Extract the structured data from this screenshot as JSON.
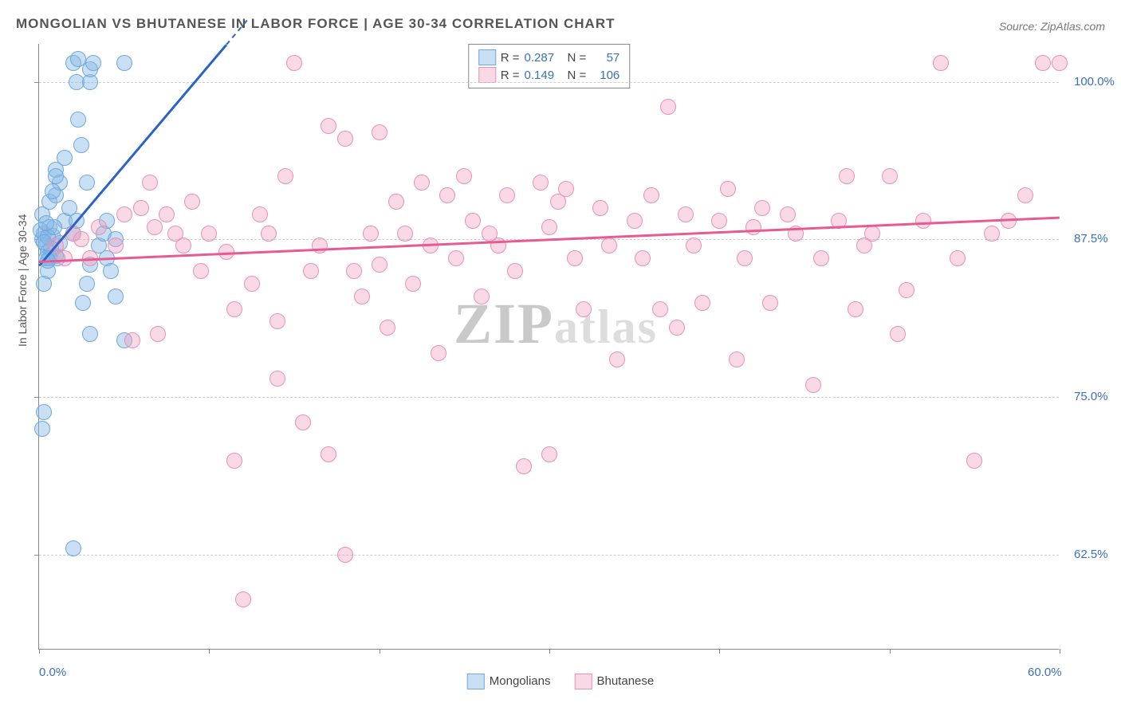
{
  "title": "MONGOLIAN VS BHUTANESE IN LABOR FORCE | AGE 30-34 CORRELATION CHART",
  "source": "Source: ZipAtlas.com",
  "y_axis_label": "In Labor Force | Age 30-34",
  "watermark_1": "ZIP",
  "watermark_2": "atlas",
  "chart": {
    "type": "scatter",
    "xlim": [
      0,
      60
    ],
    "ylim": [
      55,
      103
    ],
    "x_ticks": [
      0,
      10,
      20,
      30,
      40,
      50,
      60
    ],
    "x_tick_labels": {
      "0": "0.0%",
      "60": "60.0%"
    },
    "y_ticks": [
      62.5,
      75.0,
      87.5,
      100.0
    ],
    "y_tick_labels": [
      "62.5%",
      "75.0%",
      "87.5%",
      "100.0%"
    ],
    "grid_color": "#cccccc",
    "axis_color": "#888888",
    "background_color": "#ffffff",
    "marker_radius": 10,
    "marker_stroke_width": 1.5,
    "series": [
      {
        "name": "Mongolians",
        "fill_color": "rgba(135,183,231,0.45)",
        "stroke_color": "#6fa9db",
        "r_value": "0.287",
        "n_value": "57",
        "trend": {
          "x1": 0,
          "y1": 85.5,
          "x2": 11,
          "y2": 103,
          "color": "#2a62c9",
          "dash_tail": true
        },
        "points": [
          [
            0.2,
            87.5
          ],
          [
            0.3,
            88.0
          ],
          [
            0.4,
            87.0
          ],
          [
            0.5,
            86.5
          ],
          [
            0.6,
            88.5
          ],
          [
            0.8,
            87.8
          ],
          [
            1.0,
            86.2
          ],
          [
            0.5,
            85.0
          ],
          [
            0.3,
            84.0
          ],
          [
            1.2,
            87.2
          ],
          [
            0.1,
            88.2
          ],
          [
            0.2,
            89.5
          ],
          [
            0.2,
            72.5
          ],
          [
            0.3,
            73.8
          ],
          [
            1.0,
            93.0
          ],
          [
            1.5,
            89.0
          ],
          [
            2.0,
            88.0
          ],
          [
            2.0,
            101.5
          ],
          [
            2.2,
            100.0
          ],
          [
            2.3,
            101.8
          ],
          [
            3.0,
            100.0
          ],
          [
            2.3,
            97.0
          ],
          [
            2.5,
            95.0
          ],
          [
            2.8,
            92.0
          ],
          [
            3.0,
            101.0
          ],
          [
            3.2,
            101.5
          ],
          [
            5.0,
            101.5
          ],
          [
            2.6,
            82.5
          ],
          [
            2.8,
            84.0
          ],
          [
            3.0,
            85.5
          ],
          [
            3.0,
            80.0
          ],
          [
            3.5,
            87.0
          ],
          [
            3.8,
            88.0
          ],
          [
            4.0,
            89.0
          ],
          [
            4.0,
            86.0
          ],
          [
            4.5,
            87.5
          ],
          [
            4.2,
            85.0
          ],
          [
            4.5,
            83.0
          ],
          [
            5.0,
            79.5
          ],
          [
            2.0,
            63.0
          ],
          [
            0.6,
            90.5
          ],
          [
            1.0,
            91.0
          ],
          [
            1.2,
            92.0
          ],
          [
            1.5,
            94.0
          ],
          [
            1.0,
            92.5
          ],
          [
            0.8,
            91.3
          ],
          [
            0.5,
            87.7
          ],
          [
            0.7,
            86.8
          ],
          [
            0.9,
            88.5
          ],
          [
            1.8,
            90.0
          ],
          [
            2.2,
            89.0
          ],
          [
            0.4,
            86.0
          ],
          [
            0.6,
            86.0
          ],
          [
            1.1,
            86.0
          ],
          [
            0.3,
            87.3
          ],
          [
            0.4,
            88.8
          ],
          [
            0.5,
            85.8
          ]
        ]
      },
      {
        "name": "Bhutanese",
        "fill_color": "rgba(240,160,190,0.40)",
        "stroke_color": "#e890b5",
        "r_value": "0.149",
        "n_value": "106",
        "trend": {
          "x1": 0,
          "y1": 85.8,
          "x2": 60,
          "y2": 89.3,
          "color": "#e75a92",
          "dash_tail": false
        },
        "points": [
          [
            1.0,
            87.0
          ],
          [
            1.5,
            86.0
          ],
          [
            2.0,
            88.0
          ],
          [
            2.5,
            87.5
          ],
          [
            3.0,
            86.0
          ],
          [
            3.5,
            88.5
          ],
          [
            4.5,
            87.0
          ],
          [
            5.0,
            89.5
          ],
          [
            5.5,
            79.5
          ],
          [
            6.0,
            90.0
          ],
          [
            6.5,
            92.0
          ],
          [
            6.8,
            88.5
          ],
          [
            7.0,
            80.0
          ],
          [
            7.5,
            89.5
          ],
          [
            8.0,
            88.0
          ],
          [
            8.5,
            87.0
          ],
          [
            9.0,
            90.5
          ],
          [
            9.5,
            85.0
          ],
          [
            10.0,
            88.0
          ],
          [
            11.0,
            86.5
          ],
          [
            11.5,
            70.0
          ],
          [
            12.0,
            59.0
          ],
          [
            11.5,
            82.0
          ],
          [
            12.5,
            84.0
          ],
          [
            13.0,
            89.5
          ],
          [
            13.5,
            88.0
          ],
          [
            14.0,
            76.5
          ],
          [
            14.0,
            81.0
          ],
          [
            14.5,
            92.5
          ],
          [
            15.0,
            101.5
          ],
          [
            15.5,
            73.0
          ],
          [
            16.0,
            85.0
          ],
          [
            16.5,
            87.0
          ],
          [
            17.0,
            96.5
          ],
          [
            17.0,
            70.5
          ],
          [
            18.0,
            62.5
          ],
          [
            18.0,
            95.5
          ],
          [
            18.5,
            85.0
          ],
          [
            19.0,
            83.0
          ],
          [
            19.5,
            88.0
          ],
          [
            20.0,
            85.5
          ],
          [
            20.0,
            96.0
          ],
          [
            20.5,
            80.5
          ],
          [
            21.0,
            90.5
          ],
          [
            21.5,
            88.0
          ],
          [
            22.0,
            84.0
          ],
          [
            22.5,
            92.0
          ],
          [
            23.0,
            87.0
          ],
          [
            23.5,
            78.5
          ],
          [
            24.0,
            91.0
          ],
          [
            24.5,
            86.0
          ],
          [
            25.0,
            92.5
          ],
          [
            25.5,
            89.0
          ],
          [
            26.0,
            83.0
          ],
          [
            26.5,
            88.0
          ],
          [
            27.0,
            87.0
          ],
          [
            27.5,
            91.0
          ],
          [
            28.0,
            85.0
          ],
          [
            28.5,
            69.5
          ],
          [
            29.5,
            92.0
          ],
          [
            30.0,
            88.5
          ],
          [
            30.0,
            70.5
          ],
          [
            30.5,
            90.5
          ],
          [
            31.0,
            91.5
          ],
          [
            31.5,
            86.0
          ],
          [
            32.0,
            82.0
          ],
          [
            33.0,
            90.0
          ],
          [
            33.5,
            87.0
          ],
          [
            34.0,
            78.0
          ],
          [
            35.0,
            89.0
          ],
          [
            35.5,
            86.0
          ],
          [
            36.0,
            91.0
          ],
          [
            36.5,
            82.0
          ],
          [
            37.0,
            98.0
          ],
          [
            37.5,
            80.5
          ],
          [
            38.0,
            89.5
          ],
          [
            38.5,
            87.0
          ],
          [
            39.0,
            82.5
          ],
          [
            40.0,
            89.0
          ],
          [
            40.5,
            91.5
          ],
          [
            41.0,
            78.0
          ],
          [
            41.5,
            86.0
          ],
          [
            42.0,
            88.5
          ],
          [
            42.5,
            90.0
          ],
          [
            43.0,
            82.5
          ],
          [
            44.0,
            89.5
          ],
          [
            44.5,
            88.0
          ],
          [
            45.5,
            76.0
          ],
          [
            46.0,
            86.0
          ],
          [
            47.0,
            89.0
          ],
          [
            47.5,
            92.5
          ],
          [
            48.0,
            82.0
          ],
          [
            48.5,
            87.0
          ],
          [
            49.0,
            88.0
          ],
          [
            50.0,
            92.5
          ],
          [
            51.0,
            83.5
          ],
          [
            52.0,
            89.0
          ],
          [
            53.0,
            101.5
          ],
          [
            54.0,
            86.0
          ],
          [
            55.0,
            70.0
          ],
          [
            56.0,
            88.0
          ],
          [
            57.0,
            89.0
          ],
          [
            58.0,
            91.0
          ],
          [
            59.0,
            101.5
          ],
          [
            60.0,
            101.5
          ],
          [
            50.5,
            80.0
          ]
        ]
      }
    ]
  },
  "legend_top": {
    "r_label": "R =",
    "n_label": "N ="
  },
  "legend_bottom": {
    "label1": "Mongolians",
    "label2": "Bhutanese"
  },
  "colors": {
    "tick_label": "#3b6fb6",
    "title": "#555555",
    "stat_value": "#3b6fb6"
  }
}
